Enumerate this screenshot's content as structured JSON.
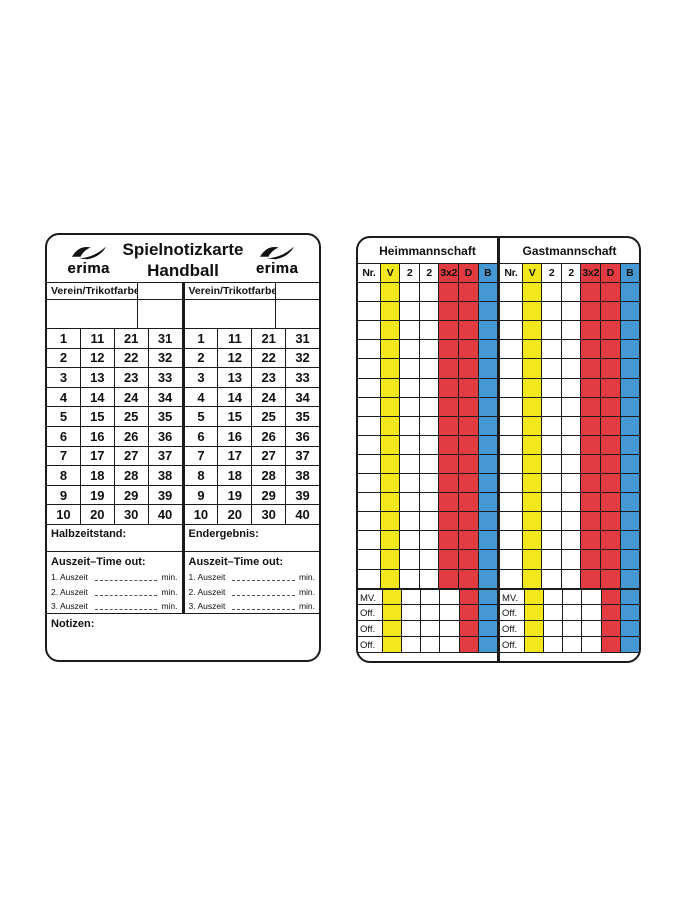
{
  "colors": {
    "card_border": "#1b1b1b",
    "yellow": "#f3e71d",
    "red": "#e23b41",
    "blue": "#4598d2",
    "white": "#ffffff"
  },
  "left_card": {
    "brand_left": "erima",
    "brand_right": "erima",
    "title_line1": "Spielnotizkarte",
    "title_line2": "Handball",
    "halves": [
      {
        "club_header": "Verein/Trikotfarbe",
        "result_label": "Halbzeitstand:"
      },
      {
        "club_header": "Verein/Trikotfarbe",
        "result_label": "Endergebnis:"
      }
    ],
    "number_rows": [
      [
        1,
        11,
        21,
        31
      ],
      [
        2,
        12,
        22,
        32
      ],
      [
        3,
        13,
        23,
        33
      ],
      [
        4,
        14,
        24,
        34
      ],
      [
        5,
        15,
        25,
        35
      ],
      [
        6,
        16,
        26,
        36
      ],
      [
        7,
        17,
        27,
        37
      ],
      [
        8,
        18,
        28,
        38
      ],
      [
        9,
        19,
        29,
        39
      ],
      [
        10,
        20,
        30,
        40
      ]
    ],
    "timeout": {
      "header": "Auszeit–Time out:",
      "lines": [
        "1. Auszeit",
        "2. Auszeit",
        "3. Auszeit"
      ],
      "unit": "min."
    },
    "notes_label": "Notizen:"
  },
  "right_card": {
    "halves": [
      {
        "team_name": "Heimmannschaft"
      },
      {
        "team_name": "Gastmannschaft"
      }
    ],
    "columns": [
      {
        "label": "Nr.",
        "header_bg": "#ffffff",
        "body_bg": "#ffffff",
        "bottom_bg": "#ffffff"
      },
      {
        "label": "V",
        "header_bg": "#f3e71d",
        "body_bg": "#f3e71d",
        "bottom_bg": "#f3e71d"
      },
      {
        "label": "2",
        "header_bg": "#ffffff",
        "body_bg": "#ffffff",
        "bottom_bg": "#ffffff"
      },
      {
        "label": "2",
        "header_bg": "#ffffff",
        "body_bg": "#ffffff",
        "bottom_bg": "#ffffff"
      },
      {
        "label": "3x2",
        "header_bg": "#e23b41",
        "body_bg": "#e23b41",
        "bottom_bg": "#ffffff"
      },
      {
        "label": "D",
        "header_bg": "#e23b41",
        "body_bg": "#e23b41",
        "bottom_bg": "#e23b41"
      },
      {
        "label": "B",
        "header_bg": "#4598d2",
        "body_bg": "#4598d2",
        "bottom_bg": "#4598d2"
      }
    ],
    "data_row_count": 16,
    "bottom_row_labels": [
      "MV.",
      "Off.",
      "Off.",
      "Off."
    ]
  }
}
